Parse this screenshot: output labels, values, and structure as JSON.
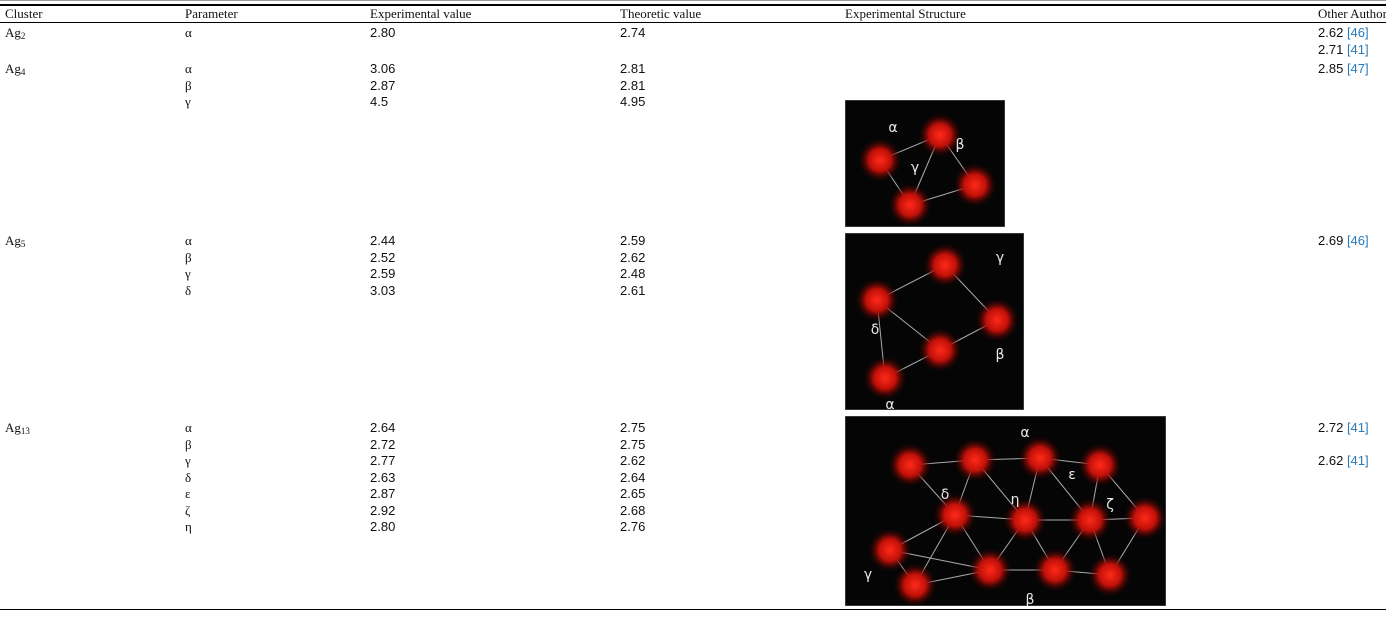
{
  "table": {
    "header": [
      "Cluster",
      "Parameter",
      "Experimental value",
      "Theoretic value",
      "Experimental Structure",
      "Other Authors"
    ],
    "rows": [
      {
        "cluster": {
          "base": "Ag",
          "sub": "2"
        },
        "parameters": [
          "α"
        ],
        "experimental": [
          "2.80"
        ],
        "theoretic": [
          "2.74"
        ],
        "others": [
          {
            "value": "2.62",
            "ref": "[46]"
          },
          {
            "value": "2.71",
            "ref": "[41]"
          }
        ]
      },
      {
        "cluster": {
          "base": "Ag",
          "sub": "4"
        },
        "parameters": [
          "α",
          "β",
          "γ"
        ],
        "experimental": [
          "3.06",
          "2.87",
          "4.5"
        ],
        "theoretic": [
          "2.81",
          "2.81",
          "4.95"
        ],
        "others": [
          {
            "value": "2.85",
            "ref": "[47]"
          }
        ],
        "structure_labels": [
          "α",
          "β",
          "γ"
        ]
      },
      {
        "cluster": {
          "base": "Ag",
          "sub": "5"
        },
        "parameters": [
          "α",
          "β",
          "γ",
          "δ"
        ],
        "experimental": [
          "2.44",
          "2.52",
          "2.59",
          "3.03"
        ],
        "theoretic": [
          "2.59",
          "2.62",
          "2.48",
          "2.61"
        ],
        "others": [
          {
            "value": "2.69",
            "ref": "[46]"
          }
        ],
        "structure_labels": [
          "γ",
          "δ",
          "β",
          "α"
        ]
      },
      {
        "cluster": {
          "base": "Ag",
          "sub": "13"
        },
        "parameters": [
          "α",
          "β",
          "γ",
          "δ",
          "ε",
          "ζ",
          "η"
        ],
        "experimental": [
          "2.64",
          "2.72",
          "2.77",
          "2.63",
          "2.87",
          "2.92",
          "2.80"
        ],
        "theoretic": [
          "2.75",
          "2.75",
          "2.62",
          "2.64",
          "2.65",
          "2.68",
          "2.76"
        ],
        "others": [
          {
            "value": "2.72",
            "ref": "[41]"
          },
          null,
          {
            "value": "2.62",
            "ref": "[41]"
          }
        ],
        "structure_labels": [
          "α",
          "ε",
          "ζ",
          "δ",
          "η",
          "γ",
          "β"
        ]
      }
    ]
  }
}
